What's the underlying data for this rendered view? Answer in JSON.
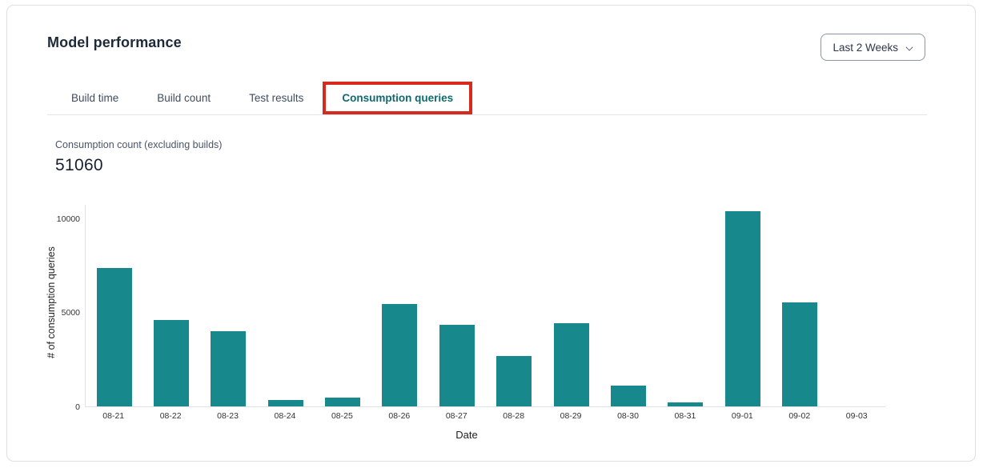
{
  "page": {
    "title": "Model performance"
  },
  "time_range_selector": {
    "value": "Last 2 Weeks"
  },
  "tabs": [
    {
      "label": "Build time",
      "active": false
    },
    {
      "label": "Build count",
      "active": false
    },
    {
      "label": "Test results",
      "active": false
    },
    {
      "label": "Consumption queries",
      "active": true,
      "highlighted": true
    }
  ],
  "metric": {
    "label": "Consumption count (excluding builds)",
    "value": "51060"
  },
  "chart_data": {
    "type": "bar",
    "title": "",
    "xlabel": "Date",
    "ylabel": "# of consumption queries",
    "categories": [
      "08-21",
      "08-22",
      "08-23",
      "08-24",
      "08-25",
      "08-26",
      "08-27",
      "08-28",
      "08-29",
      "08-30",
      "08-31",
      "09-01",
      "09-02",
      "09-03"
    ],
    "values": [
      7400,
      4600,
      4000,
      350,
      450,
      5480,
      4360,
      2680,
      4450,
      1130,
      200,
      10420,
      5540,
      0
    ],
    "ylim": [
      0,
      10750
    ],
    "yticks": [
      0,
      5000,
      10000
    ],
    "grid": false,
    "legend": false,
    "bar_color": "#17898D"
  },
  "colors": {
    "bar_teal": "#17898D",
    "active_tab_teal": "#0F6A70",
    "annotation_red": "#D62A1E",
    "inactive_tab_text": "#3F4C5F",
    "card_border": "#DCDFE4"
  }
}
